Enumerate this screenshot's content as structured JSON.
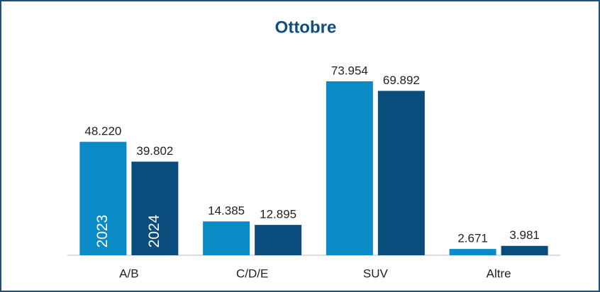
{
  "chart_data": {
    "type": "bar",
    "title": "Ottobre",
    "categories": [
      "A/B",
      "C/D/E",
      "SUV",
      "Altre"
    ],
    "series": [
      {
        "name": "2023",
        "color": "#0b8bc6",
        "values": [
          48220,
          14385,
          73954,
          2671
        ],
        "value_labels": [
          "48.220",
          "14.385",
          "73.954",
          "2.671"
        ]
      },
      {
        "name": "2024",
        "color": "#0a4c7c",
        "values": [
          39802,
          12895,
          69892,
          3981
        ],
        "value_labels": [
          "39.802",
          "12.895",
          "69.892",
          "3.981"
        ]
      }
    ]
  }
}
